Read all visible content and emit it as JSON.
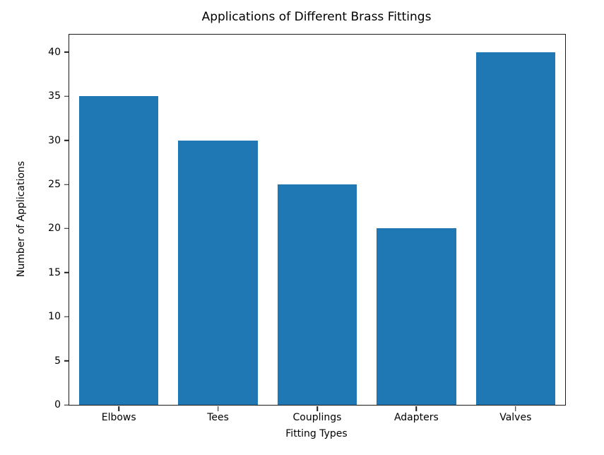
{
  "chart_data": {
    "type": "bar",
    "title": "Applications of Different Brass Fittings",
    "xlabel": "Fitting Types",
    "ylabel": "Number of Applications",
    "categories": [
      "Elbows",
      "Tees",
      "Couplings",
      "Adapters",
      "Valves"
    ],
    "values": [
      35,
      30,
      25,
      20,
      40
    ],
    "bar_color": "#1f77b4",
    "bar_width_fraction": 0.8,
    "ylim": [
      0,
      42
    ],
    "yticks": [
      0,
      5,
      10,
      15,
      20,
      25,
      30,
      35,
      40
    ],
    "grid": false,
    "legend_position": "none",
    "background_color": "#ffffff",
    "spine_color": "#1a1a1a"
  }
}
